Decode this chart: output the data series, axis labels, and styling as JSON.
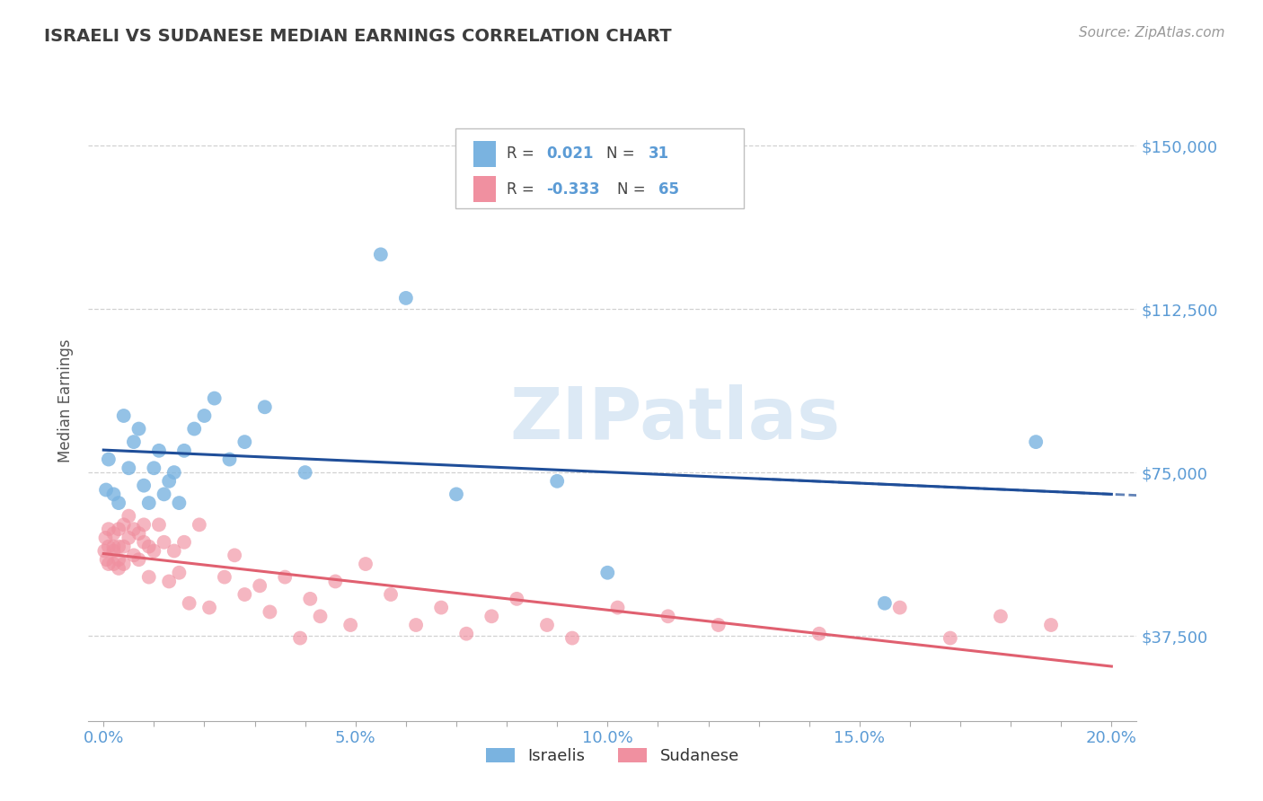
{
  "title": "ISRAELI VS SUDANESE MEDIAN EARNINGS CORRELATION CHART",
  "source": "Source: ZipAtlas.com",
  "ylabel": "Median Earnings",
  "ytick_labels": [
    "$37,500",
    "$75,000",
    "$112,500",
    "$150,000"
  ],
  "ytick_values": [
    37500,
    75000,
    112500,
    150000
  ],
  "xtick_labels": [
    "0.0%",
    "",
    "",
    "",
    "",
    "5.0%",
    "",
    "",
    "",
    "",
    "10.0%",
    "",
    "",
    "",
    "",
    "15.0%",
    "",
    "",
    "",
    "",
    "20.0%"
  ],
  "xtick_values": [
    0.0,
    0.01,
    0.02,
    0.03,
    0.04,
    0.05,
    0.06,
    0.07,
    0.08,
    0.09,
    0.1,
    0.11,
    0.12,
    0.13,
    0.14,
    0.15,
    0.16,
    0.17,
    0.18,
    0.19,
    0.2
  ],
  "xlim": [
    -0.003,
    0.205
  ],
  "ylim": [
    18000,
    165000
  ],
  "title_color": "#3d3d3d",
  "axis_color": "#5b9bd5",
  "source_color": "#999999",
  "grid_color": "#cccccc",
  "blue_color": "#7ab3e0",
  "pink_color": "#f090a0",
  "blue_line_color": "#1f4e99",
  "pink_line_color": "#e06070",
  "watermark_color": "#dce9f5",
  "watermark": "ZIPatlas",
  "israelis_x": [
    0.0005,
    0.001,
    0.002,
    0.003,
    0.004,
    0.005,
    0.006,
    0.007,
    0.008,
    0.009,
    0.01,
    0.011,
    0.012,
    0.013,
    0.014,
    0.015,
    0.016,
    0.018,
    0.02,
    0.022,
    0.025,
    0.028,
    0.032,
    0.04,
    0.055,
    0.06,
    0.07,
    0.09,
    0.1,
    0.155,
    0.185
  ],
  "israelis_y": [
    71000,
    78000,
    70000,
    68000,
    88000,
    76000,
    82000,
    85000,
    72000,
    68000,
    76000,
    80000,
    70000,
    73000,
    75000,
    68000,
    80000,
    85000,
    88000,
    92000,
    78000,
    82000,
    90000,
    75000,
    125000,
    115000,
    70000,
    73000,
    52000,
    45000,
    82000
  ],
  "sudanese_x": [
    0.0002,
    0.0004,
    0.0006,
    0.001,
    0.001,
    0.001,
    0.002,
    0.002,
    0.002,
    0.002,
    0.003,
    0.003,
    0.003,
    0.003,
    0.004,
    0.004,
    0.004,
    0.005,
    0.005,
    0.006,
    0.006,
    0.007,
    0.007,
    0.008,
    0.008,
    0.009,
    0.009,
    0.01,
    0.011,
    0.012,
    0.013,
    0.014,
    0.015,
    0.016,
    0.017,
    0.019,
    0.021,
    0.024,
    0.026,
    0.028,
    0.031,
    0.033,
    0.036,
    0.039,
    0.041,
    0.043,
    0.046,
    0.049,
    0.052,
    0.057,
    0.062,
    0.067,
    0.072,
    0.077,
    0.082,
    0.088,
    0.093,
    0.102,
    0.112,
    0.122,
    0.142,
    0.158,
    0.168,
    0.178,
    0.188
  ],
  "sudanese_y": [
    57000,
    60000,
    55000,
    62000,
    58000,
    54000,
    61000,
    57000,
    54000,
    58000,
    62000,
    58000,
    55000,
    53000,
    63000,
    58000,
    54000,
    65000,
    60000,
    62000,
    56000,
    61000,
    55000,
    59000,
    63000,
    58000,
    51000,
    57000,
    63000,
    59000,
    50000,
    57000,
    52000,
    59000,
    45000,
    63000,
    44000,
    51000,
    56000,
    47000,
    49000,
    43000,
    51000,
    37000,
    46000,
    42000,
    50000,
    40000,
    54000,
    47000,
    40000,
    44000,
    38000,
    42000,
    46000,
    40000,
    37000,
    44000,
    42000,
    40000,
    38000,
    44000,
    37000,
    42000,
    40000
  ]
}
